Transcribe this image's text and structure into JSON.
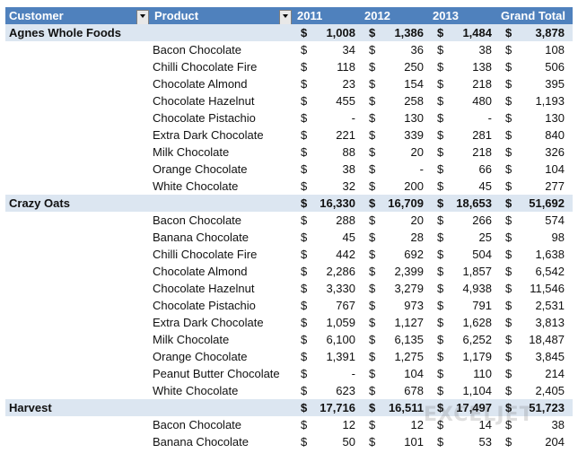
{
  "header": {
    "customer": "Customer",
    "product": "Product",
    "y2011": "2011",
    "y2012": "2012",
    "y2013": "2013",
    "grand_total": "Grand Total"
  },
  "groups": [
    {
      "customer": "Agnes Whole Foods",
      "totals": [
        "1,008",
        "1,386",
        "1,484",
        "3,878"
      ],
      "products": [
        {
          "name": "Bacon Chocolate",
          "values": [
            "34",
            "36",
            "38",
            "108"
          ]
        },
        {
          "name": "Chilli Chocolate Fire",
          "values": [
            "118",
            "250",
            "138",
            "506"
          ]
        },
        {
          "name": "Chocolate Almond",
          "values": [
            "23",
            "154",
            "218",
            "395"
          ]
        },
        {
          "name": "Chocolate Hazelnut",
          "values": [
            "455",
            "258",
            "480",
            "1,193"
          ]
        },
        {
          "name": "Chocolate Pistachio",
          "values": [
            "-",
            "130",
            "-",
            "130"
          ]
        },
        {
          "name": "Extra Dark Chocolate",
          "values": [
            "221",
            "339",
            "281",
            "840"
          ]
        },
        {
          "name": "Milk Chocolate",
          "values": [
            "88",
            "20",
            "218",
            "326"
          ]
        },
        {
          "name": "Orange Chocolate",
          "values": [
            "38",
            "-",
            "66",
            "104"
          ]
        },
        {
          "name": "White Chocolate",
          "values": [
            "32",
            "200",
            "45",
            "277"
          ]
        }
      ]
    },
    {
      "customer": "Crazy Oats",
      "totals": [
        "16,330",
        "16,709",
        "18,653",
        "51,692"
      ],
      "products": [
        {
          "name": "Bacon Chocolate",
          "values": [
            "288",
            "20",
            "266",
            "574"
          ]
        },
        {
          "name": "Banana Chocolate",
          "values": [
            "45",
            "28",
            "25",
            "98"
          ]
        },
        {
          "name": "Chilli Chocolate Fire",
          "values": [
            "442",
            "692",
            "504",
            "1,638"
          ]
        },
        {
          "name": "Chocolate Almond",
          "values": [
            "2,286",
            "2,399",
            "1,857",
            "6,542"
          ]
        },
        {
          "name": "Chocolate Hazelnut",
          "values": [
            "3,330",
            "3,279",
            "4,938",
            "11,546"
          ]
        },
        {
          "name": "Chocolate Pistachio",
          "values": [
            "767",
            "973",
            "791",
            "2,531"
          ]
        },
        {
          "name": "Extra Dark Chocolate",
          "values": [
            "1,059",
            "1,127",
            "1,628",
            "3,813"
          ]
        },
        {
          "name": "Milk Chocolate",
          "values": [
            "6,100",
            "6,135",
            "6,252",
            "18,487"
          ]
        },
        {
          "name": "Orange Chocolate",
          "values": [
            "1,391",
            "1,275",
            "1,179",
            "3,845"
          ]
        },
        {
          "name": "Peanut Butter Chocolate",
          "values": [
            "-",
            "104",
            "110",
            "214"
          ]
        },
        {
          "name": "White Chocolate",
          "values": [
            "623",
            "678",
            "1,104",
            "2,405"
          ]
        }
      ]
    },
    {
      "customer": "Harvest",
      "totals": [
        "17,716",
        "16,511",
        "17,497",
        "51,723"
      ],
      "products": [
        {
          "name": "Bacon Chocolate",
          "values": [
            "12",
            "12",
            "14",
            "38"
          ]
        },
        {
          "name": "Banana Chocolate",
          "values": [
            "50",
            "101",
            "53",
            "204"
          ]
        }
      ]
    }
  ],
  "currency_symbol": "$",
  "watermark_text": "EXCELJET",
  "icons": {
    "filter_dropdown": "filter-dropdown-icon"
  },
  "colors": {
    "header_bg": "#4f81bd",
    "subtotal_bg": "#dce6f1",
    "header_text": "#ffffff"
  }
}
